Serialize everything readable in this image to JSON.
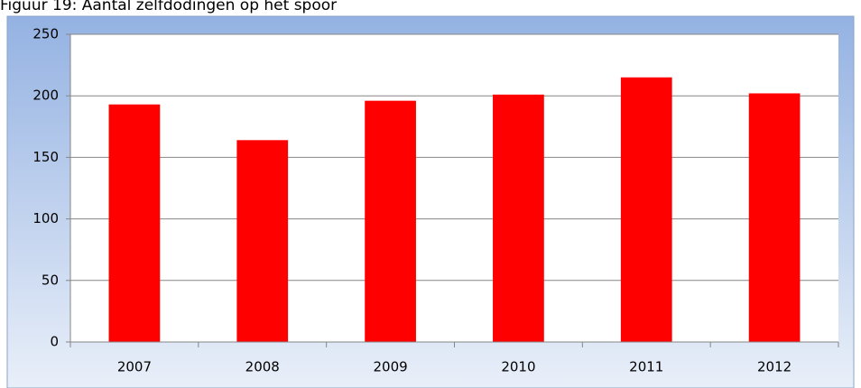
{
  "chart_data": {
    "type": "bar",
    "title": "Figuur 19: Aantal zelfdodingen op het spoor",
    "categories": [
      "2007",
      "2008",
      "2009",
      "2010",
      "2011",
      "2012"
    ],
    "values": [
      193,
      164,
      196,
      201,
      215,
      202
    ],
    "color": "#ff0000",
    "ylim": [
      0,
      250
    ],
    "yticks": [
      0,
      50,
      100,
      150,
      200,
      250
    ],
    "grid": true
  }
}
